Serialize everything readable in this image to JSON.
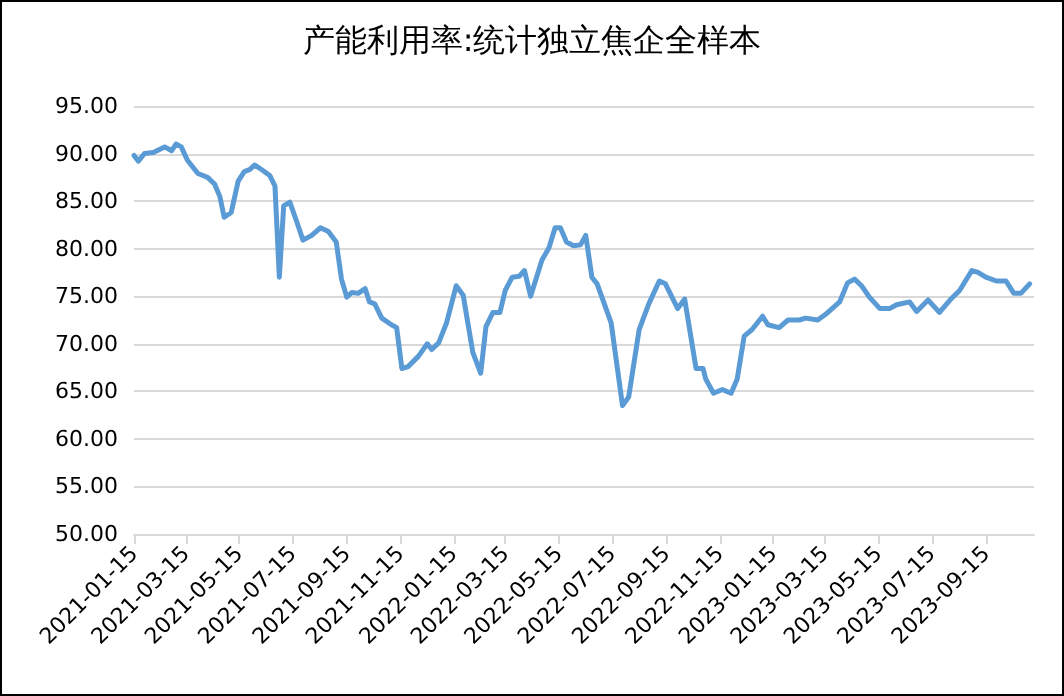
{
  "chart_data": {
    "type": "line",
    "title": "产能利用率:统计独立焦企全样本",
    "x": [
      "2021-01-15",
      "2021-01-20",
      "2021-01-27",
      "2021-02-06",
      "2021-02-19",
      "2021-02-27",
      "2021-03-04",
      "2021-03-10",
      "2021-03-17",
      "2021-03-29",
      "2021-04-09",
      "2021-04-17",
      "2021-04-23",
      "2021-04-28",
      "2021-05-06",
      "2021-05-14",
      "2021-05-21",
      "2021-05-27",
      "2021-06-02",
      "2021-06-10",
      "2021-06-19",
      "2021-06-25",
      "2021-06-30",
      "2021-07-05",
      "2021-07-12",
      "2021-07-20",
      "2021-07-27",
      "2021-08-06",
      "2021-08-16",
      "2021-08-25",
      "2021-09-03",
      "2021-09-09",
      "2021-09-15",
      "2021-09-21",
      "2021-09-28",
      "2021-10-06",
      "2021-10-11",
      "2021-10-17",
      "2021-10-25",
      "2021-11-05",
      "2021-11-11",
      "2021-11-17",
      "2021-11-24",
      "2021-12-06",
      "2021-12-16",
      "2021-12-21",
      "2021-12-29",
      "2022-01-07",
      "2022-01-18",
      "2022-01-26",
      "2022-02-06",
      "2022-02-15",
      "2022-02-21",
      "2022-03-01",
      "2022-03-09",
      "2022-03-15",
      "2022-03-23",
      "2022-03-31",
      "2022-04-06",
      "2022-04-13",
      "2022-04-26",
      "2022-05-04",
      "2022-05-11",
      "2022-05-17",
      "2022-05-24",
      "2022-06-01",
      "2022-06-09",
      "2022-06-15",
      "2022-06-22",
      "2022-06-28",
      "2022-07-14",
      "2022-07-27",
      "2022-08-03",
      "2022-08-15",
      "2022-08-26",
      "2022-09-07",
      "2022-09-14",
      "2022-09-28",
      "2022-10-06",
      "2022-10-19",
      "2022-10-27",
      "2022-10-30",
      "2022-11-08",
      "2022-11-18",
      "2022-11-28",
      "2022-12-05",
      "2022-12-13",
      "2022-12-22",
      "2023-01-03",
      "2023-01-09",
      "2023-01-22",
      "2023-02-01",
      "2023-02-14",
      "2023-02-21",
      "2023-03-07",
      "2023-03-16",
      "2023-04-01",
      "2023-04-10",
      "2023-04-18",
      "2023-04-26",
      "2023-05-05",
      "2023-05-17",
      "2023-05-28",
      "2023-06-05",
      "2023-06-20",
      "2023-06-28",
      "2023-07-11",
      "2023-07-24",
      "2023-08-05",
      "2023-08-16",
      "2023-08-30",
      "2023-09-06",
      "2023-09-15",
      "2023-09-27",
      "2023-10-08",
      "2023-10-17",
      "2023-10-25",
      "2023-11-04"
    ],
    "series": [
      {
        "color": "#5b9bd5",
        "values": [
          89.8,
          89.2,
          90.0,
          90.1,
          90.7,
          90.3,
          91.0,
          90.7,
          89.3,
          87.9,
          87.5,
          86.8,
          85.5,
          83.3,
          83.8,
          87.1,
          88.1,
          88.3,
          88.8,
          88.3,
          87.7,
          86.6,
          77.0,
          84.5,
          84.9,
          82.8,
          80.9,
          81.4,
          82.2,
          81.8,
          80.7,
          76.8,
          74.9,
          75.4,
          75.3,
          75.8,
          74.4,
          74.2,
          72.7,
          72.0,
          71.7,
          67.4,
          67.6,
          68.7,
          70.0,
          69.4,
          70.1,
          72.2,
          76.1,
          75.1,
          69.1,
          66.9,
          71.8,
          73.3,
          73.3,
          75.6,
          77.0,
          77.1,
          77.7,
          75.0,
          78.8,
          80.1,
          82.2,
          82.2,
          80.7,
          80.3,
          80.4,
          81.4,
          77.0,
          76.3,
          72.2,
          63.5,
          64.4,
          71.5,
          74.2,
          76.6,
          76.3,
          73.7,
          74.7,
          67.4,
          67.4,
          66.3,
          64.8,
          65.2,
          64.8,
          66.3,
          70.8,
          71.5,
          72.9,
          72.0,
          71.7,
          72.5,
          72.5,
          72.7,
          72.5,
          73.1,
          74.4,
          76.4,
          76.8,
          76.1,
          74.9,
          73.7,
          73.7,
          74.1,
          74.4,
          73.4,
          74.6,
          73.3,
          74.6,
          75.6,
          77.7,
          77.5,
          77.0,
          76.6,
          76.6,
          75.3,
          75.3,
          76.3
        ]
      }
    ],
    "xlim": [
      "2021-01-15",
      "2023-11-09"
    ],
    "xticks": [
      "2021-01-15",
      "2021-03-15",
      "2021-05-15",
      "2021-07-15",
      "2021-09-15",
      "2021-11-15",
      "2022-01-15",
      "2022-03-15",
      "2022-05-15",
      "2022-07-15",
      "2022-09-15",
      "2022-11-15",
      "2023-01-15",
      "2023-03-15",
      "2023-05-15",
      "2023-07-15",
      "2023-09-15"
    ],
    "ylim": [
      50,
      95
    ],
    "yticks": [
      {
        "value": 50,
        "label": "50.00"
      },
      {
        "value": 55,
        "label": "55.00"
      },
      {
        "value": 60,
        "label": "60.00"
      },
      {
        "value": 65,
        "label": "65.00"
      },
      {
        "value": 70,
        "label": "70.00"
      },
      {
        "value": 75,
        "label": "75.00"
      },
      {
        "value": 80,
        "label": "80.00"
      },
      {
        "value": 85,
        "label": "85.00"
      },
      {
        "value": 90,
        "label": "90.00"
      },
      {
        "value": 95,
        "label": "95.00"
      }
    ],
    "grid": "y",
    "marker": "none",
    "line_style": "solid"
  }
}
